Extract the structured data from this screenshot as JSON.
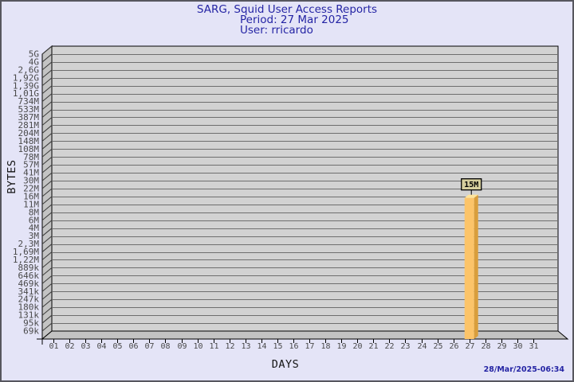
{
  "header": {
    "title": "SARG, Squid User Access Reports",
    "period": "Period: 27 Mar 2025",
    "user": "User: rricardo"
  },
  "footer": {
    "timestamp": "28/Mar/2025-06:34"
  },
  "chart_data": {
    "type": "bar",
    "title": "SARG, Squid User Access Reports",
    "subtitle": [
      "Period: 27 Mar 2025",
      "User: rricardo"
    ],
    "xlabel": "DAYS",
    "ylabel": "BYTES",
    "y_scale": "log-like tick ladder, top to bottom",
    "y_tick_labels": [
      "5G",
      "4G",
      "2,6G",
      "1,92G",
      "1,39G",
      "1,01G",
      "734M",
      "533M",
      "387M",
      "281M",
      "204M",
      "148M",
      "108M",
      "78M",
      "57M",
      "41M",
      "30M",
      "22M",
      "16M",
      "11M",
      "8M",
      "6M",
      "4M",
      "3M",
      "2,3M",
      "1,69M",
      "1,22M",
      "889k",
      "646k",
      "469k",
      "341k",
      "247k",
      "180k",
      "131k",
      "95k",
      "69k"
    ],
    "x_tick_labels": [
      "01",
      "02",
      "03",
      "04",
      "05",
      "06",
      "07",
      "08",
      "09",
      "10",
      "11",
      "12",
      "13",
      "14",
      "15",
      "16",
      "17",
      "18",
      "19",
      "20",
      "21",
      "22",
      "23",
      "24",
      "25",
      "26",
      "27",
      "28",
      "29",
      "30",
      "31"
    ],
    "bars": [
      {
        "day": "27",
        "label": "15M",
        "value_bytes": 15000000
      }
    ],
    "grid": "horizontal lines at every y tick",
    "legend": "none",
    "colors": {
      "page_bg": "#e4e4f7",
      "title_text": "#2424a4",
      "plot_bg": "#d2d2d2",
      "wall": "#c3c3c3",
      "grid_line": "#6e6e6e",
      "wall_diag": "#3a3a3a",
      "tick_text": "#4a4a4a",
      "bar_face": "#FCC469",
      "bar_side": "#D99E3C",
      "bar_top": "#FFE49A",
      "label_box_bg": "#D5CE9D",
      "outline": "#000000"
    }
  }
}
